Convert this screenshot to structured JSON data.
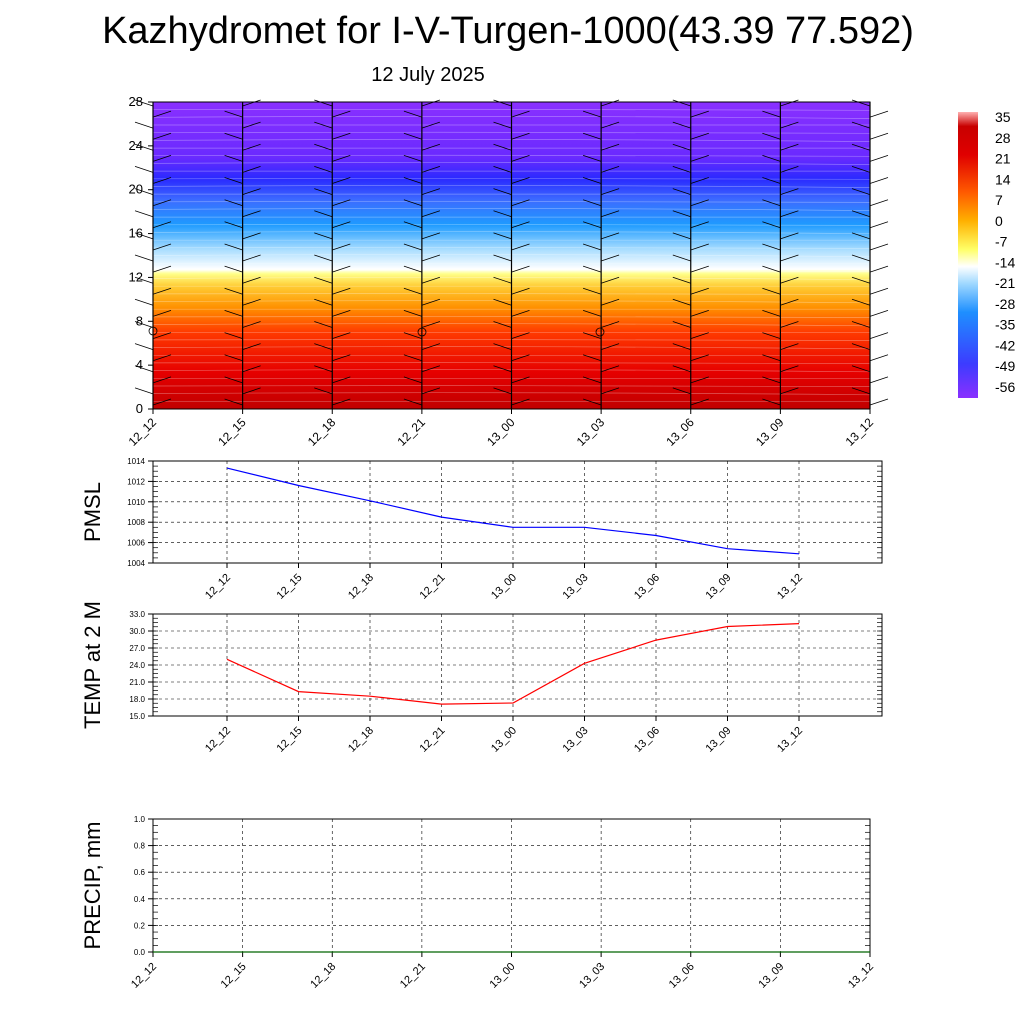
{
  "header": {
    "title": "Kazhydromet for I-V-Turgen-1000(43.39 77.592)",
    "subtitle": "12 July 2025"
  },
  "colors": {
    "pmsl_line": "#0000ff",
    "temp_line": "#ff0000",
    "precip_line": "#006400",
    "colormap": [
      "#8a2be2",
      "#3c3cff",
      "#1e90ff",
      "#87cefa",
      "#ffffff",
      "#ffff66",
      "#ffb000",
      "#ff6a00",
      "#e60000",
      "#c80000",
      "#ff9999"
    ]
  },
  "chart_data": [
    {
      "type": "heatmap",
      "xlabel": "",
      "ylabel": "",
      "x_ticks": [
        "12_12",
        "12_15",
        "12_18",
        "12_21",
        "13_00",
        "13_03",
        "13_06",
        "13_09",
        "13_12"
      ],
      "y_ticks": [
        0,
        4,
        8,
        12,
        16,
        20,
        24,
        28
      ],
      "ylim": [
        0,
        28
      ],
      "colorbar_labels": [
        "35",
        "28",
        "21",
        "14",
        "7",
        "0",
        "-7",
        "-14",
        "-21",
        "-28",
        "-35",
        "-42",
        "-49",
        "-56"
      ],
      "overlay": "wind barbs",
      "temperature_profile": [
        {
          "level": 0,
          "value": 28
        },
        {
          "level": 4,
          "value": 25
        },
        {
          "level": 8,
          "value": 14
        },
        {
          "level": 12,
          "value": 0
        },
        {
          "level": 13,
          "value": -14
        },
        {
          "level": 16,
          "value": -28
        },
        {
          "level": 20,
          "value": -49
        },
        {
          "level": 24,
          "value": -56
        },
        {
          "level": 28,
          "value": -56
        }
      ]
    },
    {
      "type": "line",
      "ylabel": "PMSL",
      "x": [
        "12_12",
        "12_15",
        "12_18",
        "12_21",
        "13_00",
        "13_03",
        "13_06",
        "13_09",
        "13_12"
      ],
      "y_ticks": [
        "1014",
        "1012",
        "1010",
        "1008",
        "1006",
        "1004"
      ],
      "ylim": [
        1004,
        1014
      ],
      "values": [
        1013.3,
        1011.6,
        1010.1,
        1008.5,
        1007.5,
        1007.5,
        1006.7,
        1005.4,
        1004.9
      ]
    },
    {
      "type": "line",
      "ylabel": "TEMP at 2 M",
      "x": [
        "12_12",
        "12_15",
        "12_18",
        "12_21",
        "13_00",
        "13_03",
        "13_06",
        "13_09",
        "13_12"
      ],
      "y_ticks": [
        "33.0",
        "30.0",
        "27.0",
        "24.0",
        "21.0",
        "18.0",
        "15.0"
      ],
      "ylim": [
        15,
        33
      ],
      "values": [
        25.0,
        19.3,
        18.5,
        17.1,
        17.3,
        24.3,
        28.4,
        30.8,
        31.3
      ]
    },
    {
      "type": "line",
      "ylabel": "PRECIP, mm",
      "x_ticks": [
        "12_12",
        "12_15",
        "12_18",
        "12_21",
        "13_00",
        "13_03",
        "13_06",
        "13_09",
        "13_12"
      ],
      "y_ticks": [
        "1.0",
        "0.8",
        "0.6",
        "0.4",
        "0.2",
        "0.0"
      ],
      "ylim": [
        0,
        1
      ],
      "values": [
        0,
        0,
        0,
        0,
        0,
        0,
        0,
        0,
        0
      ]
    }
  ]
}
